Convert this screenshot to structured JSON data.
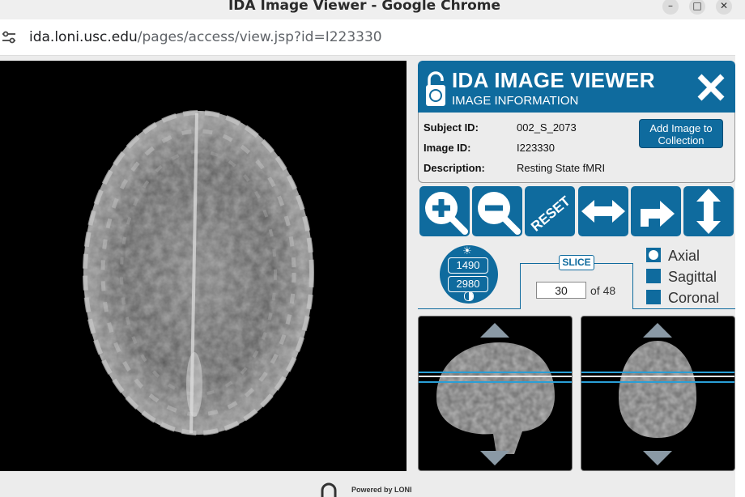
{
  "window": {
    "title": "IDA Image Viewer - Google Chrome"
  },
  "browser": {
    "url_domain": "ida.loni.usc.edu",
    "url_path": "/pages/access/view.jsp?id=I223330"
  },
  "viewer": {
    "title": "IDA IMAGE VIEWER",
    "subtitle": "IMAGE INFORMATION",
    "fields": [
      {
        "label": "Subject ID:",
        "value": "002_S_2073"
      },
      {
        "label": "Image ID:",
        "value": "I223330"
      },
      {
        "label": "Description:",
        "value": "Resting State fMRI"
      }
    ],
    "add_button": "Add Image to Collection",
    "reset_label": "RESET"
  },
  "window_level": {
    "level": "1490",
    "width": "2980"
  },
  "slice": {
    "tag": "SLICE",
    "current": "30",
    "of_text": "of 48"
  },
  "orientation": {
    "options": [
      "Axial",
      "Sagittal",
      "Coronal"
    ],
    "selected": "Axial"
  },
  "footer": {
    "text": "Powered by LONI"
  },
  "colors": {
    "accent": "#0f6b9e"
  }
}
